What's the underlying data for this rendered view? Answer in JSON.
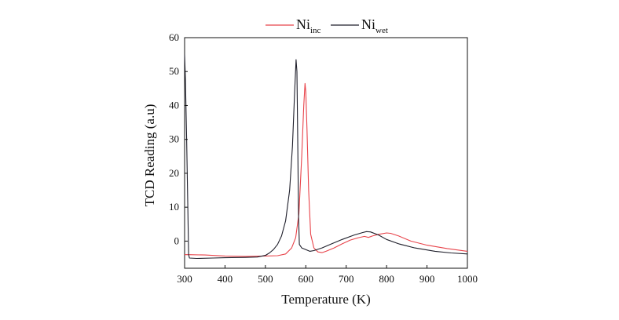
{
  "chart_data": {
    "type": "line",
    "title": "",
    "xlabel": "Temperature (K)",
    "ylabel": "TCD Reading (a.u)",
    "xlim": [
      300,
      1000
    ],
    "ylim": [
      -8,
      60
    ],
    "xticks": [
      300,
      400,
      500,
      600,
      700,
      800,
      900,
      1000
    ],
    "yticks": [
      0,
      10,
      20,
      30,
      40,
      50,
      60
    ],
    "grid": false,
    "legend_position": "top-center",
    "series": [
      {
        "name_main": "Ni",
        "name_sub": "inc",
        "color": "#e8434a",
        "points": [
          [
            300,
            -4
          ],
          [
            310,
            -4
          ],
          [
            350,
            -4.1
          ],
          [
            400,
            -4.4
          ],
          [
            450,
            -4.5
          ],
          [
            500,
            -4.4
          ],
          [
            530,
            -4.3
          ],
          [
            550,
            -3.8
          ],
          [
            565,
            -2
          ],
          [
            575,
            1
          ],
          [
            583,
            8
          ],
          [
            590,
            25
          ],
          [
            595,
            40
          ],
          [
            598,
            46.5
          ],
          [
            600,
            44
          ],
          [
            603,
            33
          ],
          [
            607,
            15
          ],
          [
            612,
            2
          ],
          [
            620,
            -2
          ],
          [
            630,
            -3.2
          ],
          [
            640,
            -3.4
          ],
          [
            650,
            -3
          ],
          [
            670,
            -2
          ],
          [
            690,
            -0.8
          ],
          [
            710,
            0.3
          ],
          [
            730,
            1
          ],
          [
            745,
            1.4
          ],
          [
            755,
            1.1
          ],
          [
            765,
            1.5
          ],
          [
            780,
            2
          ],
          [
            800,
            2.4
          ],
          [
            810,
            2.3
          ],
          [
            830,
            1.5
          ],
          [
            860,
            0
          ],
          [
            900,
            -1.2
          ],
          [
            950,
            -2.2
          ],
          [
            1000,
            -3
          ]
        ]
      },
      {
        "name_main": "Ni",
        "name_sub": "wet",
        "color": "#1e1e2a",
        "points": [
          [
            300,
            55
          ],
          [
            302,
            48
          ],
          [
            305,
            30
          ],
          [
            308,
            10
          ],
          [
            310,
            -4
          ],
          [
            312,
            -5
          ],
          [
            330,
            -5.1
          ],
          [
            370,
            -5
          ],
          [
            400,
            -4.9
          ],
          [
            450,
            -4.8
          ],
          [
            480,
            -4.7
          ],
          [
            500,
            -4.2
          ],
          [
            510,
            -3.5
          ],
          [
            520,
            -2.5
          ],
          [
            530,
            -1
          ],
          [
            540,
            1.5
          ],
          [
            550,
            6
          ],
          [
            560,
            15
          ],
          [
            567,
            28
          ],
          [
            572,
            43
          ],
          [
            576,
            53.5
          ],
          [
            578,
            50
          ],
          [
            580,
            30
          ],
          [
            582,
            8
          ],
          [
            584,
            -1
          ],
          [
            590,
            -2
          ],
          [
            600,
            -2.5
          ],
          [
            610,
            -3
          ],
          [
            620,
            -2.8
          ],
          [
            640,
            -2
          ],
          [
            660,
            -1
          ],
          [
            690,
            0.5
          ],
          [
            720,
            1.8
          ],
          [
            740,
            2.5
          ],
          [
            750,
            2.8
          ],
          [
            760,
            2.7
          ],
          [
            780,
            1.8
          ],
          [
            800,
            0.5
          ],
          [
            830,
            -0.8
          ],
          [
            870,
            -2
          ],
          [
            920,
            -3
          ],
          [
            960,
            -3.5
          ],
          [
            1000,
            -3.8
          ]
        ]
      }
    ]
  }
}
